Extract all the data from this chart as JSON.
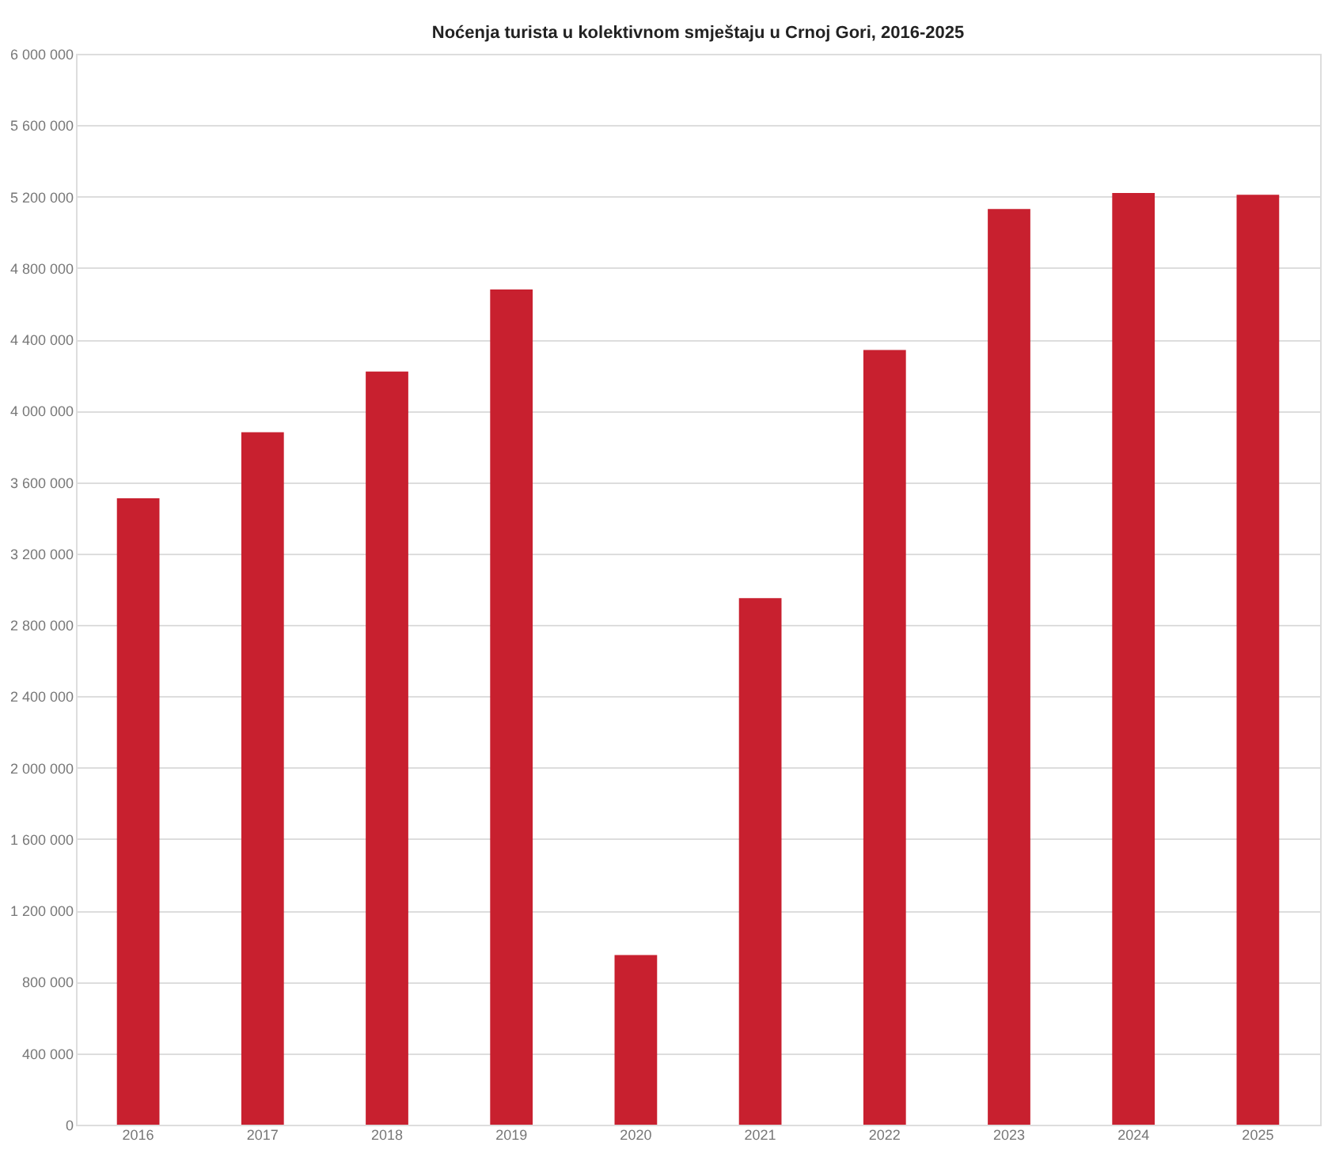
{
  "chart_data": {
    "type": "bar",
    "title": "Noćenja turista u kolektivnom smještaju u Crnoj Gori, 2016-2025",
    "categories": [
      "2016",
      "2017",
      "2018",
      "2019",
      "2020",
      "2021",
      "2022",
      "2023",
      "2024",
      "2025"
    ],
    "values": [
      3510000,
      3880000,
      4220000,
      4680000,
      950000,
      2950000,
      4340000,
      5130000,
      5220000,
      5210000
    ],
    "color": "#c8202f",
    "ylim": [
      0,
      6000000
    ],
    "yticks": [
      {
        "value": 0,
        "label": "0"
      },
      {
        "value": 400000,
        "label": "400 000"
      },
      {
        "value": 800000,
        "label": "800 000"
      },
      {
        "value": 1200000,
        "label": "1 200 000"
      },
      {
        "value": 1600000,
        "label": "1 600 000"
      },
      {
        "value": 2000000,
        "label": "2 000 000"
      },
      {
        "value": 2400000,
        "label": "2 400 000"
      },
      {
        "value": 2800000,
        "label": "2 800 000"
      },
      {
        "value": 3200000,
        "label": "3 200 000"
      },
      {
        "value": 3600000,
        "label": "3 600 000"
      },
      {
        "value": 4000000,
        "label": "4 000 000"
      },
      {
        "value": 4400000,
        "label": "4 400 000"
      },
      {
        "value": 4800000,
        "label": "4 800 000"
      },
      {
        "value": 5200000,
        "label": "5 200 000"
      },
      {
        "value": 5600000,
        "label": "5 600 000"
      },
      {
        "value": 6000000,
        "label": "6 000 000"
      }
    ],
    "grid": "y"
  }
}
